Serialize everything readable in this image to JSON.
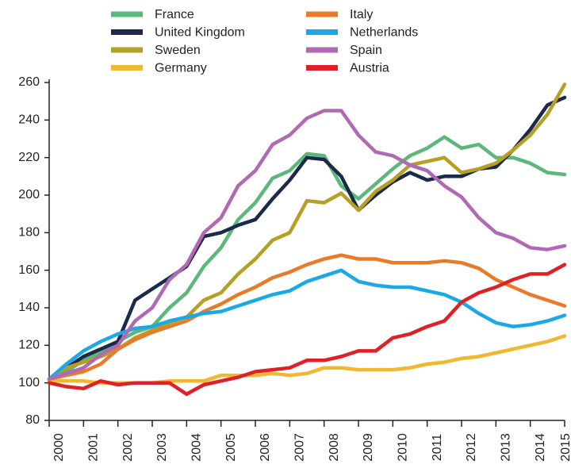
{
  "chart_data": {
    "type": "line",
    "x": [
      2000,
      2000.5,
      2001,
      2001.5,
      2002,
      2002.5,
      2003,
      2003.5,
      2004,
      2004.5,
      2005,
      2005.5,
      2006,
      2006.5,
      2007,
      2007.5,
      2008,
      2008.5,
      2009,
      2009.5,
      2010,
      2010.5,
      2011,
      2011.5,
      2012,
      2012.5,
      2013,
      2013.5,
      2014,
      2014.5,
      2015
    ],
    "xlim": [
      2000,
      2015
    ],
    "xticks": [
      2000,
      2001,
      2002,
      2003,
      2004,
      2005,
      2006,
      2007,
      2008,
      2009,
      2010,
      2011,
      2012,
      2013,
      2014,
      2015
    ],
    "ylim": [
      80,
      260
    ],
    "yticks": [
      80,
      100,
      120,
      140,
      160,
      180,
      200,
      220,
      240,
      260
    ],
    "grid": false,
    "legend": "top",
    "series": [
      {
        "name": "France",
        "color": "#5cb87a",
        "values": [
          102,
          106,
          112,
          116,
          122,
          127,
          130,
          140,
          148,
          162,
          172,
          187,
          196,
          209,
          213,
          222,
          221,
          205,
          198,
          206,
          214,
          221,
          225,
          231,
          225,
          227,
          220,
          220,
          217,
          212,
          211
        ]
      },
      {
        "name": "United Kingdom",
        "color": "#1b2a4a",
        "values": [
          102,
          108,
          114,
          118,
          122,
          144,
          150,
          156,
          162,
          178,
          180,
          184,
          187,
          198,
          208,
          220,
          219,
          210,
          192,
          200,
          207,
          212,
          208,
          210,
          210,
          214,
          215,
          224,
          235,
          248,
          252
        ]
      },
      {
        "name": "Sweden",
        "color": "#b5a024",
        "values": [
          102,
          108,
          111,
          114,
          118,
          124,
          128,
          132,
          135,
          144,
          148,
          158,
          166,
          176,
          180,
          197,
          196,
          201,
          192,
          202,
          208,
          216,
          218,
          220,
          212,
          214,
          217,
          224,
          232,
          243,
          259
        ]
      },
      {
        "name": "Germany",
        "color": "#f2b730",
        "values": [
          101,
          101,
          101,
          100,
          100,
          100,
          100,
          101,
          101,
          101,
          104,
          104,
          104,
          105,
          104,
          105,
          108,
          108,
          107,
          107,
          107,
          108,
          110,
          111,
          113,
          114,
          116,
          118,
          120,
          122,
          125
        ]
      },
      {
        "name": "Italy",
        "color": "#e87b2a",
        "values": [
          102,
          104,
          106,
          110,
          118,
          123,
          127,
          130,
          133,
          138,
          142,
          147,
          151,
          156,
          159,
          163,
          166,
          168,
          166,
          166,
          164,
          164,
          164,
          165,
          164,
          161,
          155,
          151,
          147,
          144,
          141
        ]
      },
      {
        "name": "Netherlands",
        "color": "#1aa9e6",
        "values": [
          102,
          110,
          117,
          122,
          126,
          129,
          130,
          133,
          135,
          137,
          138,
          141,
          144,
          147,
          149,
          154,
          157,
          160,
          154,
          152,
          151,
          151,
          149,
          147,
          143,
          137,
          132,
          130,
          131,
          133,
          136
        ]
      },
      {
        "name": "Spain",
        "color": "#b06ab3",
        "values": [
          102,
          105,
          108,
          115,
          120,
          133,
          140,
          155,
          163,
          180,
          188,
          205,
          213,
          227,
          232,
          241,
          245,
          245,
          232,
          223,
          221,
          216,
          213,
          205,
          199,
          188,
          180,
          177,
          172,
          171,
          173
        ]
      },
      {
        "name": "Austria",
        "color": "#e02027",
        "values": [
          100,
          98,
          97,
          101,
          99,
          100,
          100,
          100,
          94,
          99,
          101,
          103,
          106,
          107,
          108,
          112,
          112,
          114,
          117,
          117,
          124,
          126,
          130,
          133,
          143,
          148,
          151,
          155,
          158,
          158,
          163
        ]
      }
    ]
  }
}
